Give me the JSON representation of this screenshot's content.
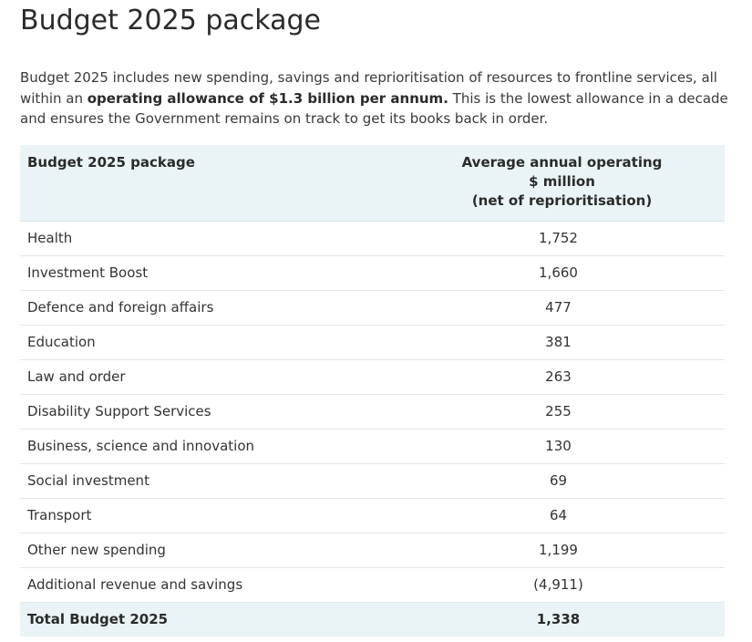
{
  "title": "Budget 2025 package",
  "intro": {
    "part1": "Budget 2025 includes new spending, savings and reprioritisation of resources to frontline services, all within an ",
    "bold": "operating allowance of $1.3 billion per annum.",
    "part2": " This is the lowest allowance in a decade and ensures the Government remains on track to get its books back in order."
  },
  "table": {
    "header": {
      "name": "Budget 2025 package",
      "value_line1": "Average annual operating",
      "value_line2": "$ million",
      "value_line3": "(net of reprioritisation)"
    },
    "rows": [
      {
        "name": "Health",
        "value": "1,752"
      },
      {
        "name": "Investment Boost",
        "value": "1,660"
      },
      {
        "name": "Defence and foreign affairs",
        "value": "477"
      },
      {
        "name": "Education",
        "value": "381"
      },
      {
        "name": "Law and order",
        "value": "263"
      },
      {
        "name": "Disability Support Services",
        "value": "255"
      },
      {
        "name": "Business, science and innovation",
        "value": "130"
      },
      {
        "name": "Social investment",
        "value": "69"
      },
      {
        "name": "Transport",
        "value": "64"
      },
      {
        "name": "Other new spending",
        "value": "1,199"
      },
      {
        "name": "Additional revenue and savings",
        "value": "(4,911)"
      }
    ],
    "total": {
      "name": "Total Budget 2025",
      "value": "1,338"
    }
  },
  "colors": {
    "header_bg": "#eaf4f6",
    "text": "#2b2b2b",
    "row_border": "#e3e6e8"
  }
}
